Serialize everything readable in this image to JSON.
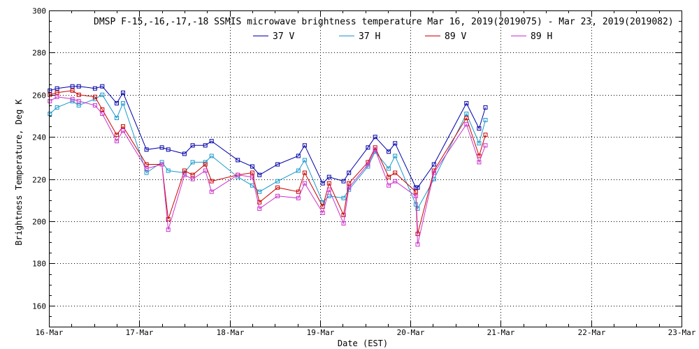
{
  "chart_data": {
    "type": "line",
    "title": "DMSP F-15,-16,-17,-18 SSMIS microwave brightness temperature Mar 16, 2019(2019075) - Mar 23, 2019(2019082)",
    "xlabel": "Date (EST)",
    "ylabel": "Brightness Temperature, Deg K",
    "xlim": [
      0,
      7
    ],
    "ylim": [
      150,
      300
    ],
    "x_tick_labels": [
      "16-Mar",
      "17-Mar",
      "18-Mar",
      "19-Mar",
      "20-Mar",
      "21-Mar",
      "22-Mar",
      "23-Mar"
    ],
    "y_ticks": [
      160,
      180,
      200,
      220,
      240,
      260,
      280,
      300
    ],
    "x_minor_per_day": 4,
    "y_minor_step": 5,
    "grid": true,
    "legend_position": "top-center",
    "series": [
      {
        "name": "37 V",
        "color": "#0000aa",
        "x": [
          0.01,
          0.09,
          0.26,
          0.33,
          0.51,
          0.59,
          0.75,
          0.82,
          1.08,
          1.25,
          1.32,
          1.5,
          1.59,
          1.73,
          1.8,
          2.09,
          2.25,
          2.33,
          2.53,
          2.76,
          2.83,
          3.03,
          3.1,
          3.26,
          3.32,
          3.53,
          3.61,
          3.76,
          3.83,
          4.06,
          4.08,
          4.26,
          4.62,
          4.76,
          4.83
        ],
        "y": [
          262,
          263,
          264,
          264,
          263,
          264,
          256,
          261,
          234,
          235,
          234,
          232,
          236,
          236,
          238,
          229,
          226,
          222,
          227,
          231,
          236,
          218,
          221,
          219,
          223,
          235,
          240,
          233,
          237,
          216,
          216,
          227,
          256,
          244,
          254
        ]
      },
      {
        "name": "37 H",
        "color": "#1a99cc",
        "x": [
          0.01,
          0.09,
          0.26,
          0.33,
          0.51,
          0.59,
          0.75,
          0.82,
          1.08,
          1.25,
          1.32,
          1.5,
          1.59,
          1.73,
          1.8,
          2.09,
          2.25,
          2.33,
          2.53,
          2.76,
          2.83,
          3.03,
          3.1,
          3.26,
          3.32,
          3.53,
          3.61,
          3.76,
          3.83,
          4.06,
          4.08,
          4.26,
          4.62,
          4.76,
          4.83
        ],
        "y": [
          251,
          254,
          257,
          255,
          258,
          260,
          249,
          256,
          223,
          228,
          224,
          223,
          228,
          228,
          231,
          221,
          217,
          214,
          219,
          224,
          229,
          209,
          212,
          211,
          215,
          226,
          233,
          225,
          231,
          208,
          206,
          220,
          251,
          237,
          248
        ]
      },
      {
        "name": "89 V",
        "color": "#cc0000",
        "x": [
          0.01,
          0.09,
          0.26,
          0.33,
          0.51,
          0.59,
          0.75,
          0.82,
          1.08,
          1.25,
          1.32,
          1.5,
          1.59,
          1.73,
          1.8,
          2.09,
          2.25,
          2.33,
          2.53,
          2.76,
          2.83,
          3.03,
          3.1,
          3.26,
          3.32,
          3.53,
          3.61,
          3.76,
          3.83,
          4.06,
          4.08,
          4.26,
          4.62,
          4.76,
          4.83
        ],
        "y": [
          260,
          261,
          262,
          260,
          259,
          253,
          241,
          245,
          227,
          227,
          201,
          224,
          222,
          227,
          219,
          222,
          223,
          209,
          216,
          214,
          223,
          207,
          218,
          203,
          218,
          228,
          235,
          221,
          223,
          214,
          194,
          224,
          249,
          231,
          241
        ]
      },
      {
        "name": "89 H",
        "color": "#cc33cc",
        "x": [
          0.01,
          0.09,
          0.26,
          0.33,
          0.51,
          0.59,
          0.75,
          0.82,
          1.08,
          1.25,
          1.32,
          1.5,
          1.59,
          1.73,
          1.8,
          2.09,
          2.25,
          2.33,
          2.53,
          2.76,
          2.83,
          3.03,
          3.1,
          3.26,
          3.32,
          3.53,
          3.61,
          3.76,
          3.83,
          4.06,
          4.08,
          4.26,
          4.62,
          4.76,
          4.83
        ],
        "y": [
          257,
          259,
          258,
          257,
          255,
          251,
          238,
          243,
          225,
          227,
          196,
          222,
          220,
          224,
          214,
          222,
          221,
          206,
          212,
          211,
          218,
          204,
          215,
          199,
          216,
          227,
          234,
          217,
          219,
          212,
          189,
          223,
          246,
          228,
          236
        ]
      }
    ]
  }
}
